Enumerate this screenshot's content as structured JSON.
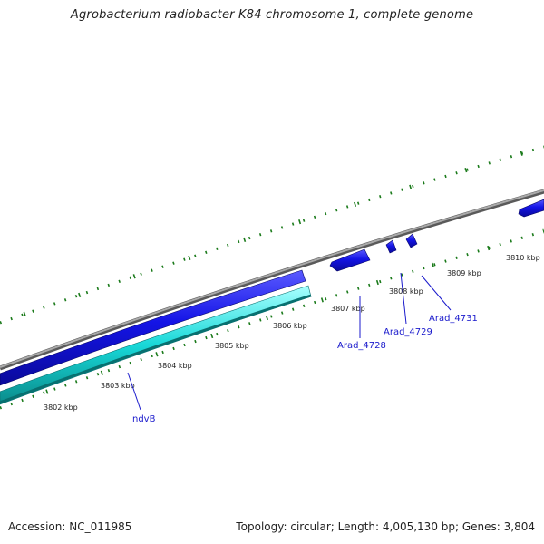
{
  "title": "Agrobacterium radiobacter K84 chromosome 1, complete genome",
  "footer": {
    "accession": "Accession: NC_011985",
    "stats": "Topology: circular; Length: 4,005,130 bp; Genes: 3,804"
  },
  "colors": {
    "backbone": "#8c8c8c",
    "forward_cds": "#1414e6",
    "reverse_cds": "#12d0d0",
    "tick": "#1a7a1a",
    "gene_label": "#1a1acc",
    "leader": "#1a1acc"
  },
  "ticks": [
    {
      "label": "3802 kbp"
    },
    {
      "label": "3803 kbp"
    },
    {
      "label": "3804 kbp"
    },
    {
      "label": "3805 kbp"
    },
    {
      "label": "3806 kbp"
    },
    {
      "label": "3807 kbp"
    },
    {
      "label": "3808 kbp"
    },
    {
      "label": "3809 kbp"
    },
    {
      "label": "3810 kbp"
    }
  ],
  "genes": [
    {
      "name": "ndvB"
    },
    {
      "name": "Arad_4728"
    },
    {
      "name": "Arad_4729"
    },
    {
      "name": "Arad_4731"
    }
  ]
}
